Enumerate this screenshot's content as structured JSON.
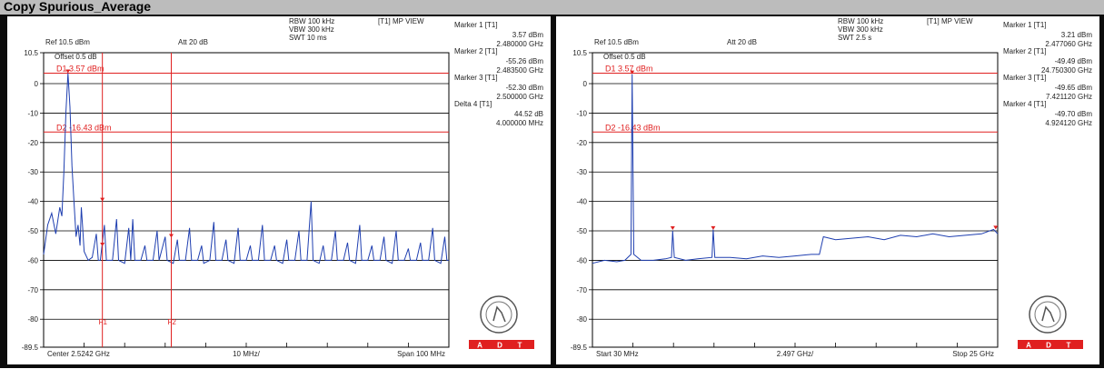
{
  "page_title": "Copy Spurious_Average",
  "colors": {
    "trace": "#1f3fb0",
    "marker": "#e02020",
    "grid": "#000000",
    "adt_red": "#e02020"
  },
  "plots": [
    {
      "id": "left",
      "ref_level": "Ref 10.5 dBm",
      "att": "Att  20 dB",
      "rbw": "RBW 100 kHz",
      "vbw": "VBW 300 kHz",
      "swt": "SWT 10 ms",
      "view": "[T1] MP VIEW",
      "offset": "Offset 0.5 dB",
      "d1_label": "D1  3.57 dBm",
      "d2_label": "D2 -16.43 dBm",
      "y_ticks": [
        "10.5",
        "0",
        "-10",
        "-20",
        "-30",
        "-40",
        "-50",
        "-60",
        "-70",
        "-80",
        "-89.5"
      ],
      "bottom_left": "Center 2.5242 GHz",
      "bottom_mid": "10 MHz/",
      "bottom_right": "Span 100 MHz",
      "markers": [
        {
          "title": "Marker 1 [T1]",
          "value": "3.57 dBm",
          "freq": "2.480000 GHz"
        },
        {
          "title": "Marker 2 [T1]",
          "value": "-55.26 dBm",
          "freq": "2.483500 GHz"
        },
        {
          "title": "Marker 3 [T1]",
          "value": "-52.30 dBm",
          "freq": "2.500000 GHz"
        },
        {
          "title": "Delta 4 [T1]",
          "value": "44.52 dB",
          "freq": "4.000000 MHz"
        }
      ],
      "line_labels": {
        "f1": "F1",
        "f2": "F2"
      },
      "trace_points": [
        [
          0,
          -58
        ],
        [
          1,
          -48
        ],
        [
          2,
          -44
        ],
        [
          3,
          -51
        ],
        [
          4,
          -42
        ],
        [
          4.5,
          -45
        ],
        [
          5,
          -30
        ],
        [
          5.5,
          -10
        ],
        [
          6,
          3.57
        ],
        [
          6.5,
          -8
        ],
        [
          7,
          -28
        ],
        [
          7.5,
          -40
        ],
        [
          8,
          -52
        ],
        [
          8.5,
          -48
        ],
        [
          9,
          -55
        ],
        [
          9.3,
          -42
        ],
        [
          9.6,
          -48
        ],
        [
          10,
          -57
        ],
        [
          11,
          -60
        ],
        [
          12,
          -59
        ],
        [
          13,
          -51
        ],
        [
          13.5,
          -60
        ],
        [
          14,
          -60
        ],
        [
          15,
          -48
        ],
        [
          15.5,
          -60
        ],
        [
          16,
          -60
        ],
        [
          17,
          -60
        ],
        [
          18,
          -46
        ],
        [
          18.5,
          -60
        ],
        [
          20,
          -61
        ],
        [
          21,
          -49
        ],
        [
          21.5,
          -60
        ],
        [
          22,
          -46
        ],
        [
          22.5,
          -60
        ],
        [
          24,
          -60
        ],
        [
          25,
          -55
        ],
        [
          25.5,
          -60
        ],
        [
          27,
          -60
        ],
        [
          28,
          -50
        ],
        [
          28.5,
          -60
        ],
        [
          30,
          -52
        ],
        [
          30.5,
          -60
        ],
        [
          32,
          -61
        ],
        [
          33,
          -53
        ],
        [
          33.5,
          -60
        ],
        [
          35,
          -60
        ],
        [
          36,
          -49
        ],
        [
          36.5,
          -60
        ],
        [
          38,
          -60
        ],
        [
          39,
          -55
        ],
        [
          39.5,
          -61
        ],
        [
          41,
          -60
        ],
        [
          42,
          -47
        ],
        [
          42.5,
          -60
        ],
        [
          44,
          -60
        ],
        [
          45,
          -53
        ],
        [
          45.5,
          -60
        ],
        [
          47,
          -61
        ],
        [
          48,
          -49
        ],
        [
          48.5,
          -60
        ],
        [
          50,
          -60
        ],
        [
          51,
          -55
        ],
        [
          51.5,
          -60
        ],
        [
          53,
          -60
        ],
        [
          54,
          -48
        ],
        [
          54.5,
          -60
        ],
        [
          56,
          -60
        ],
        [
          57,
          -55
        ],
        [
          57.5,
          -60
        ],
        [
          59,
          -61
        ],
        [
          60,
          -53
        ],
        [
          60.5,
          -60
        ],
        [
          62,
          -60
        ],
        [
          63,
          -50
        ],
        [
          63.5,
          -60
        ],
        [
          65,
          -60
        ],
        [
          66,
          -40
        ],
        [
          66.5,
          -60
        ],
        [
          68,
          -61
        ],
        [
          69,
          -55
        ],
        [
          69.5,
          -60
        ],
        [
          71,
          -60
        ],
        [
          72,
          -50
        ],
        [
          72.5,
          -60
        ],
        [
          74,
          -60
        ],
        [
          75,
          -54
        ],
        [
          75.5,
          -60
        ],
        [
          77,
          -61
        ],
        [
          78,
          -48
        ],
        [
          78.5,
          -60
        ],
        [
          80,
          -60
        ],
        [
          81,
          -55
        ],
        [
          81.5,
          -60
        ],
        [
          83,
          -60
        ],
        [
          84,
          -52
        ],
        [
          84.5,
          -60
        ],
        [
          86,
          -61
        ],
        [
          87,
          -50
        ],
        [
          87.5,
          -60
        ],
        [
          89,
          -60
        ],
        [
          90,
          -56
        ],
        [
          90.5,
          -60
        ],
        [
          92,
          -60
        ],
        [
          93,
          -54
        ],
        [
          93.5,
          -60
        ],
        [
          95,
          -60
        ],
        [
          96,
          -49
        ],
        [
          96.5,
          -60
        ],
        [
          98,
          -61
        ],
        [
          99,
          -52
        ],
        [
          99.5,
          -60
        ],
        [
          100,
          -60
        ]
      ]
    },
    {
      "id": "right",
      "ref_level": "Ref 10.5 dBm",
      "att": "Att  20 dB",
      "rbw": "RBW 100 kHz",
      "vbw": "VBW 300 kHz",
      "swt": "SWT 2.5 s",
      "view": "[T1] MP VIEW",
      "offset": "Offset 0.5 dB",
      "d1_label": "D1  3.57 dBm",
      "d2_label": "D2 -16.43 dBm",
      "y_ticks": [
        "10.5",
        "0",
        "-10",
        "-20",
        "-30",
        "-40",
        "-50",
        "-60",
        "-70",
        "-80",
        "-89.5"
      ],
      "bottom_left": "Start 30 MHz",
      "bottom_mid": "2.497 GHz/",
      "bottom_right": "Stop 25 GHz",
      "markers": [
        {
          "title": "Marker 1 [T1]",
          "value": "3.21 dBm",
          "freq": "2.477060 GHz"
        },
        {
          "title": "Marker 2 [T1]",
          "value": "-49.49 dBm",
          "freq": "24.750300 GHz"
        },
        {
          "title": "Marker 3 [T1]",
          "value": "-49.65 dBm",
          "freq": "7.421120 GHz"
        },
        {
          "title": "Marker 4 [T1]",
          "value": "-49.70 dBm",
          "freq": "4.924120 GHz"
        }
      ],
      "line_labels": {
        "f1": "",
        "f2": ""
      },
      "trace_points": [
        [
          0,
          -61
        ],
        [
          3,
          -60
        ],
        [
          6,
          -60.5
        ],
        [
          8,
          -60
        ],
        [
          9.5,
          -58
        ],
        [
          9.8,
          3.21
        ],
        [
          10.2,
          -58
        ],
        [
          12,
          -60
        ],
        [
          15,
          -60
        ],
        [
          18,
          -59.5
        ],
        [
          19.5,
          -59
        ],
        [
          19.8,
          -50
        ],
        [
          20.2,
          -59
        ],
        [
          23,
          -60
        ],
        [
          26,
          -59.5
        ],
        [
          29.5,
          -59
        ],
        [
          29.8,
          -49.6
        ],
        [
          30.2,
          -59
        ],
        [
          34,
          -59
        ],
        [
          38,
          -59.5
        ],
        [
          42,
          -58.5
        ],
        [
          46,
          -59
        ],
        [
          50,
          -58.5
        ],
        [
          54,
          -58
        ],
        [
          56,
          -58
        ],
        [
          57,
          -52
        ],
        [
          60,
          -53
        ],
        [
          64,
          -52.5
        ],
        [
          68,
          -52
        ],
        [
          72,
          -53
        ],
        [
          76,
          -51.5
        ],
        [
          80,
          -52
        ],
        [
          84,
          -51
        ],
        [
          88,
          -52
        ],
        [
          92,
          -51.5
        ],
        [
          96,
          -51
        ],
        [
          99,
          -49.5
        ],
        [
          100,
          -51
        ]
      ]
    }
  ]
}
